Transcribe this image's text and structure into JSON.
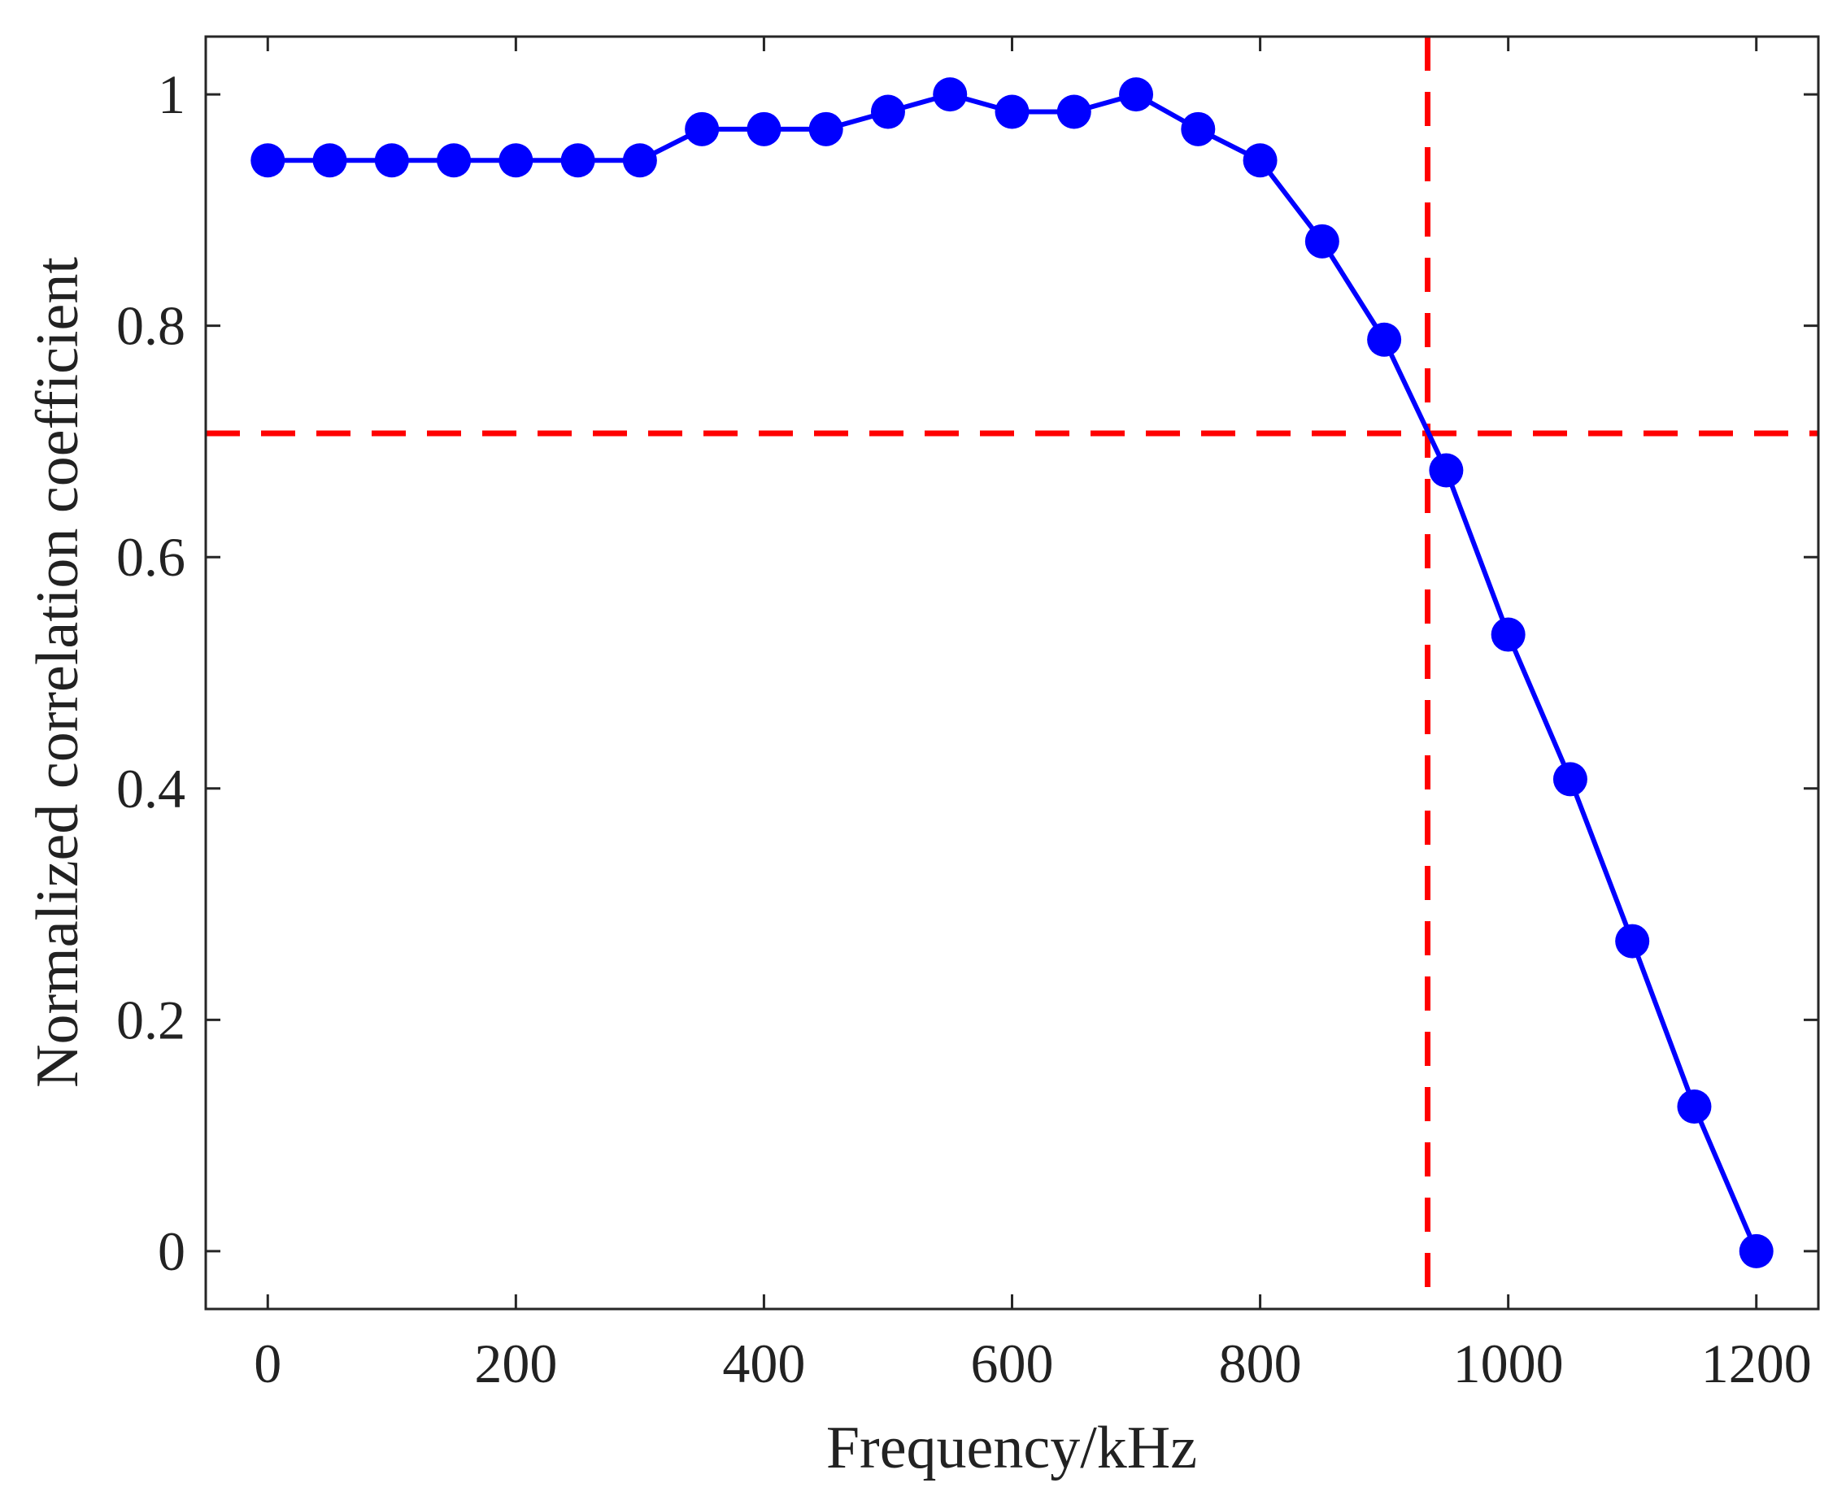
{
  "chart_data": {
    "type": "line",
    "title": "",
    "xlabel": "Frequency/kHz",
    "ylabel": "Normalized correlation coefficient",
    "xlim": [
      -50,
      1250
    ],
    "ylim": [
      -0.05,
      1.05
    ],
    "xticks": [
      0,
      200,
      400,
      600,
      800,
      1000,
      1200
    ],
    "yticks": [
      0,
      0.2,
      0.4,
      0.6,
      0.8,
      1
    ],
    "xtick_labels": [
      "0",
      "200",
      "400",
      "600",
      "800",
      "1000",
      "1200"
    ],
    "ytick_labels": [
      "0",
      "0.2",
      "0.4",
      "0.6",
      "0.8",
      "1"
    ],
    "grid": false,
    "series": [
      {
        "name": "Normalized correlation coefficient",
        "color": "#0000ff",
        "marker": "circle",
        "x": [
          0,
          50,
          100,
          150,
          200,
          250,
          300,
          350,
          400,
          450,
          500,
          550,
          600,
          650,
          700,
          750,
          800,
          850,
          900,
          950,
          1000,
          1050,
          1100,
          1150,
          1200
        ],
        "y": [
          0.943,
          0.943,
          0.943,
          0.943,
          0.943,
          0.943,
          0.943,
          0.97,
          0.97,
          0.97,
          0.985,
          1.0,
          0.985,
          0.985,
          1.0,
          0.97,
          0.943,
          0.873,
          0.788,
          0.675,
          0.533,
          0.408,
          0.268,
          0.125,
          0.0
        ]
      }
    ],
    "reference_lines": [
      {
        "orientation": "horizontal",
        "y": 0.707,
        "color": "#ff0000",
        "style": "dashed"
      },
      {
        "orientation": "vertical",
        "x": 935,
        "color": "#ff0000",
        "style": "dashed"
      }
    ]
  }
}
